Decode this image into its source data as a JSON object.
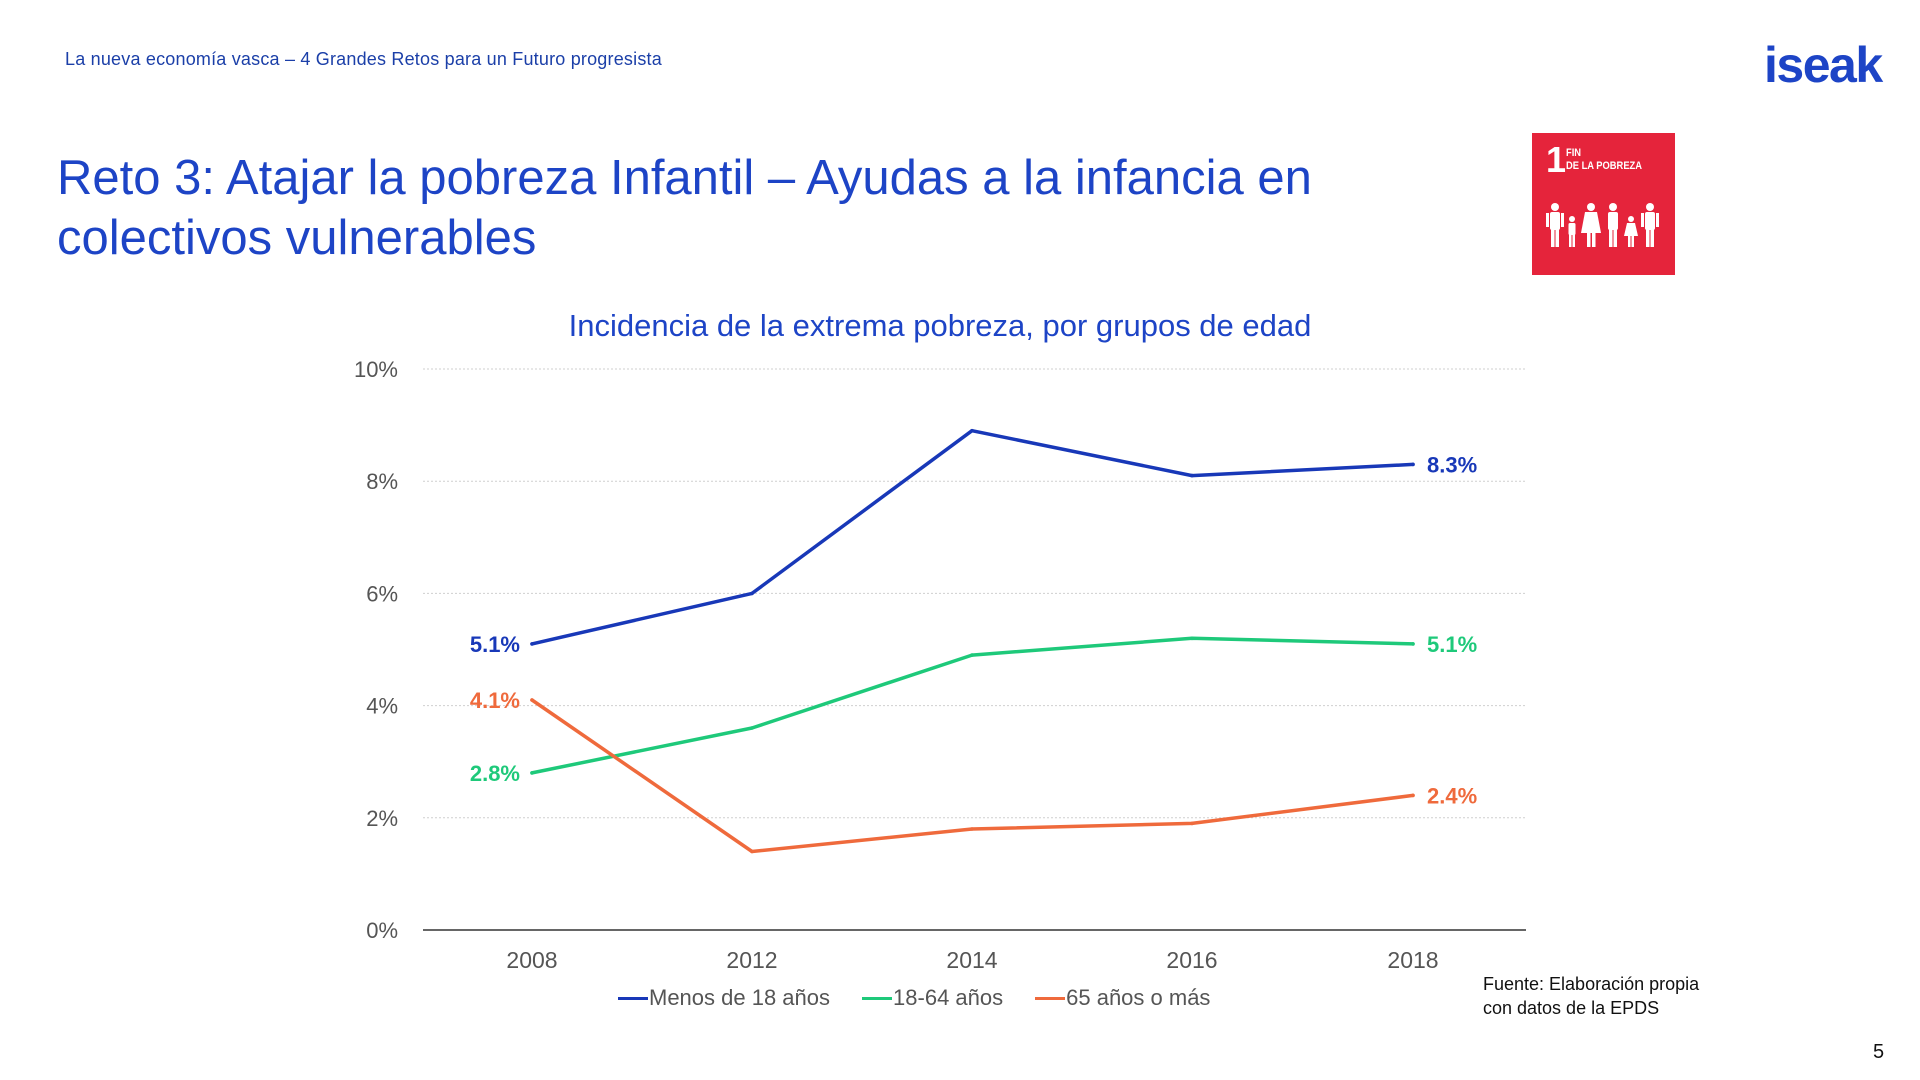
{
  "header": {
    "subtitle": "La nueva economía vasca  –  4 Grandes Retos para un Futuro progresista",
    "brand": "iseak"
  },
  "slide": {
    "title_line1": "Reto 3: Atajar la pobreza Infantil – Ayudas a la infancia en",
    "title_line2": "colectivos vulnerables",
    "page_number": "5"
  },
  "sdg_badge": {
    "number": "1",
    "line1": "FIN",
    "line2": "DE LA POBREZA",
    "color": "#e5243b",
    "icon": "family-icon"
  },
  "chart_data": {
    "type": "line",
    "title": "Incidencia de la extrema pobreza, por grupos de edad",
    "categories": [
      "2008",
      "2012",
      "2014",
      "2016",
      "2018"
    ],
    "yticks": [
      "0%",
      "2%",
      "4%",
      "6%",
      "8%",
      "10%"
    ],
    "ylim": [
      0,
      10
    ],
    "xlabel": "",
    "ylabel": "",
    "grid": true,
    "legend_position": "bottom",
    "series": [
      {
        "name": "Menos de 18 años",
        "color": "#1838b8",
        "values": [
          5.1,
          6.0,
          8.9,
          8.1,
          8.3
        ],
        "start_label": "5.1%",
        "end_label": "8.3%"
      },
      {
        "name": "18-64 años",
        "color": "#1ec97a",
        "values": [
          2.8,
          3.6,
          4.9,
          5.2,
          5.1
        ],
        "start_label": "2.8%",
        "end_label": "5.1%"
      },
      {
        "name": "65 años o más",
        "color": "#ef6a3c",
        "values": [
          4.1,
          1.4,
          1.8,
          1.9,
          2.4
        ],
        "start_label": "4.1%",
        "end_label": "2.4%"
      }
    ]
  },
  "source": {
    "line1": "Fuente: Elaboración propia",
    "line2": "con datos de la EPDS"
  }
}
